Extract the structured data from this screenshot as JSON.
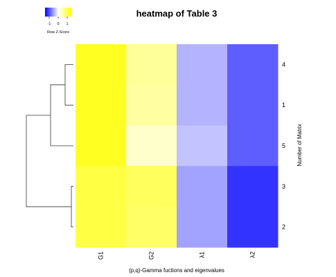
{
  "chart_data": {
    "type": "heatmap",
    "title": "heatmap of Table 3",
    "xlabel": "(p,q)-Gamma fuctions and eigenvalues",
    "ylabel": "Number of Matrix",
    "columns": [
      "G1",
      "G2",
      "λ1",
      "λ2"
    ],
    "rows": [
      "4",
      "1",
      "5",
      "3",
      "2"
    ],
    "values": [
      [
        1.3,
        0.6,
        -0.45,
        -0.95
      ],
      [
        1.3,
        0.55,
        -0.45,
        -0.95
      ],
      [
        1.3,
        0.3,
        -0.35,
        -0.95
      ],
      [
        1.1,
        0.95,
        -0.55,
        -1.2
      ],
      [
        1.1,
        0.9,
        -0.55,
        -1.2
      ]
    ],
    "color_scale": {
      "low": "#0000ff",
      "mid": "#ffffff",
      "high": "#ffff00",
      "range": [
        -1.5,
        1.5
      ]
    },
    "legend": {
      "title": "Row Z-Score",
      "ticks": [
        "-1",
        "0",
        "1"
      ],
      "placement": "top-left"
    },
    "row_dendrogram": {
      "placement": "left",
      "grid": false
    }
  }
}
